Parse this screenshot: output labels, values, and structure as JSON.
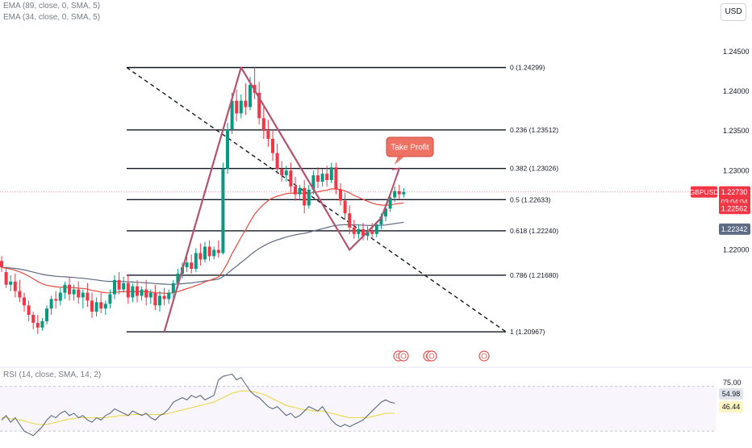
{
  "symbol": "GBPUSD",
  "currency_button": "USD",
  "countdown": "03:04:04",
  "indicators": {
    "ema89_label": "EMA (89, close, 0, SMA, 5)",
    "ema34_label": "EMA (34, close, 0, SMA, 5)",
    "rsi_label": "RSI (14, close, SMA, 14, 2)"
  },
  "colors": {
    "up": "#089981",
    "down": "#f23645",
    "ema34": "#e84a3f",
    "ema89": "#5d6b85",
    "pattern": "#b5536f",
    "take_profit_bg": "#ee7264",
    "rsi_line": "#5d6b85",
    "rsi_ma": "#e8d84a"
  },
  "annotation": {
    "take_profit": "Take Profit"
  },
  "chart_data": [
    {
      "type": "candlestick",
      "ylim": [
        1.2055,
        1.2515
      ],
      "y_ticks": [
        "1.24500",
        "1.24000",
        "1.23500",
        "1.23000",
        "1.22000"
      ],
      "y_tick_values": [
        1.245,
        1.24,
        1.235,
        1.23,
        1.22
      ],
      "fibonacci": [
        {
          "label": "0 (1.24299)",
          "value": 1.24299
        },
        {
          "label": "0.236 (1.23512)",
          "value": 1.23512
        },
        {
          "label": "0.382 (1.23026)",
          "value": 1.23026
        },
        {
          "label": "0.5 (1.22633)",
          "value": 1.22633
        },
        {
          "label": "0.618 (1.22240)",
          "value": 1.2224
        },
        {
          "label": "0.786 (1.21680)",
          "value": 1.2168
        },
        {
          "label": "1 (1.20967)",
          "value": 1.20967
        }
      ],
      "price_labels": [
        {
          "name": "GBPUSD",
          "value": 1.2273,
          "text": "1.22730"
        },
        {
          "name": "EMA 34",
          "value": 1.22562,
          "text": "1.22562"
        },
        {
          "name": "EMA 89",
          "value": 1.22342,
          "text": "1.22342"
        }
      ],
      "candles": [
        [
          1.2186,
          1.2192,
          1.2178,
          1.2172
        ],
        [
          1.2172,
          1.2179,
          1.2156,
          1.2152
        ],
        [
          1.2156,
          1.2168,
          1.216,
          1.2148
        ],
        [
          1.216,
          1.217,
          1.2148,
          1.214
        ],
        [
          1.2148,
          1.2162,
          1.214,
          1.2134
        ],
        [
          1.214,
          1.2146,
          1.213,
          1.2122
        ],
        [
          1.213,
          1.2136,
          1.2118,
          1.211
        ],
        [
          1.2118,
          1.2122,
          1.2108,
          1.21
        ],
        [
          1.2108,
          1.2118,
          1.2102,
          1.2094
        ],
        [
          1.2102,
          1.2114,
          1.211,
          1.2098
        ],
        [
          1.211,
          1.213,
          1.2126,
          1.2106
        ],
        [
          1.2126,
          1.2142,
          1.2138,
          1.2118
        ],
        [
          1.2138,
          1.2148,
          1.2136,
          1.2126
        ],
        [
          1.2136,
          1.2152,
          1.2146,
          1.213
        ],
        [
          1.2146,
          1.216,
          1.2156,
          1.2138
        ],
        [
          1.2156,
          1.2166,
          1.2144,
          1.2136
        ],
        [
          1.2144,
          1.2156,
          1.215,
          1.2136
        ],
        [
          1.215,
          1.216,
          1.214,
          1.2132
        ],
        [
          1.214,
          1.215,
          1.2146,
          1.2126
        ],
        [
          1.2146,
          1.2158,
          1.2136,
          1.2128
        ],
        [
          1.2136,
          1.2146,
          1.2122,
          1.2114
        ],
        [
          1.2122,
          1.214,
          1.2134,
          1.2116
        ],
        [
          1.2134,
          1.2146,
          1.2126,
          1.212
        ],
        [
          1.2126,
          1.2136,
          1.2132,
          1.2118
        ],
        [
          1.2132,
          1.215,
          1.2144,
          1.2126
        ],
        [
          1.2144,
          1.2168,
          1.2162,
          1.2138
        ],
        [
          1.2162,
          1.2172,
          1.215,
          1.2144
        ],
        [
          1.215,
          1.2166,
          1.2158,
          1.2146
        ],
        [
          1.2158,
          1.2168,
          1.214,
          1.2132
        ],
        [
          1.214,
          1.2158,
          1.2154,
          1.2134
        ],
        [
          1.2154,
          1.2162,
          1.2142,
          1.2134
        ],
        [
          1.2142,
          1.2154,
          1.215,
          1.2136
        ],
        [
          1.215,
          1.2162,
          1.214,
          1.213
        ],
        [
          1.214,
          1.215,
          1.2146,
          1.2132
        ],
        [
          1.2146,
          1.2156,
          1.213,
          1.2124
        ],
        [
          1.213,
          1.2148,
          1.2142,
          1.2122
        ],
        [
          1.2142,
          1.2152,
          1.2138,
          1.213
        ],
        [
          1.2138,
          1.215,
          1.2146,
          1.2132
        ],
        [
          1.2146,
          1.2162,
          1.2158,
          1.2138
        ],
        [
          1.2158,
          1.2176,
          1.217,
          1.2152
        ],
        [
          1.217,
          1.2184,
          1.2178,
          1.2164
        ],
        [
          1.2178,
          1.2192,
          1.2184,
          1.2172
        ],
        [
          1.2184,
          1.2194,
          1.2176,
          1.217
        ],
        [
          1.2176,
          1.2202,
          1.2196,
          1.2172
        ],
        [
          1.2196,
          1.2208,
          1.2188,
          1.218
        ],
        [
          1.2188,
          1.221,
          1.2204,
          1.2184
        ],
        [
          1.2204,
          1.2212,
          1.2192,
          1.2186
        ],
        [
          1.2192,
          1.2204,
          1.22,
          1.2188
        ],
        [
          1.22,
          1.2212,
          1.2196,
          1.219
        ],
        [
          1.2196,
          1.231,
          1.2302,
          1.2194
        ],
        [
          1.2302,
          1.236,
          1.2352,
          1.2296
        ],
        [
          1.2352,
          1.2398,
          1.2388,
          1.2346
        ],
        [
          1.2388,
          1.2402,
          1.2372,
          1.2362
        ],
        [
          1.2372,
          1.2396,
          1.2388,
          1.2366
        ],
        [
          1.2388,
          1.241,
          1.238,
          1.237
        ],
        [
          1.238,
          1.2418,
          1.2408,
          1.2376
        ],
        [
          1.2408,
          1.243,
          1.2398,
          1.239
        ],
        [
          1.2398,
          1.2412,
          1.2366,
          1.2358
        ],
        [
          1.2366,
          1.238,
          1.235,
          1.234
        ],
        [
          1.235,
          1.2364,
          1.234,
          1.233
        ],
        [
          1.234,
          1.2352,
          1.2322,
          1.2312
        ],
        [
          1.2322,
          1.2334,
          1.2302,
          1.2296
        ],
        [
          1.2302,
          1.2312,
          1.2294,
          1.2286
        ],
        [
          1.2294,
          1.2306,
          1.23,
          1.2286
        ],
        [
          1.23,
          1.231,
          1.228,
          1.2272
        ],
        [
          1.228,
          1.2292,
          1.227,
          1.2262
        ],
        [
          1.227,
          1.2282,
          1.2278,
          1.2262
        ],
        [
          1.2278,
          1.2288,
          1.2256,
          1.2246
        ],
        [
          1.2256,
          1.2282,
          1.2276,
          1.2252
        ],
        [
          1.2276,
          1.23,
          1.2294,
          1.227
        ],
        [
          1.2294,
          1.2304,
          1.2286,
          1.2278
        ],
        [
          1.2286,
          1.2302,
          1.2296,
          1.228
        ],
        [
          1.2296,
          1.2306,
          1.2288,
          1.228
        ],
        [
          1.2288,
          1.231,
          1.2304,
          1.2284
        ],
        [
          1.2304,
          1.231,
          1.2276,
          1.227
        ],
        [
          1.2276,
          1.2284,
          1.2262,
          1.2256
        ],
        [
          1.2262,
          1.2272,
          1.2246,
          1.2238
        ],
        [
          1.2246,
          1.2256,
          1.2228,
          1.222
        ],
        [
          1.2228,
          1.2238,
          1.222,
          1.2214
        ],
        [
          1.222,
          1.2232,
          1.2226,
          1.2214
        ],
        [
          1.2226,
          1.2234,
          1.2218,
          1.2212
        ],
        [
          1.2218,
          1.223,
          1.2224,
          1.2212
        ],
        [
          1.2224,
          1.2234,
          1.222,
          1.2214
        ],
        [
          1.222,
          1.2236,
          1.2232,
          1.2216
        ],
        [
          1.2232,
          1.2246,
          1.2242,
          1.2226
        ],
        [
          1.2242,
          1.2258,
          1.2252,
          1.2236
        ],
        [
          1.2252,
          1.2272,
          1.2266,
          1.2248
        ],
        [
          1.2266,
          1.228,
          1.2274,
          1.226
        ],
        [
          1.2274,
          1.2282,
          1.227,
          1.2264
        ],
        [
          1.227,
          1.2278,
          1.2273,
          1.2266
        ]
      ]
    },
    {
      "type": "line",
      "title": "RSI (14, close, SMA, 14, 2)",
      "ylim": [
        20,
        85
      ],
      "y_ticks": [
        "75.00"
      ],
      "value_labels": [
        "54.98",
        "46.44"
      ],
      "series": [
        {
          "name": "RSI",
          "values": [
            40,
            44,
            38,
            42,
            36,
            30,
            28,
            26,
            30,
            34,
            40,
            44,
            42,
            46,
            48,
            44,
            46,
            42,
            44,
            40,
            38,
            42,
            40,
            44,
            46,
            50,
            48,
            46,
            44,
            48,
            46,
            44,
            46,
            42,
            40,
            44,
            46,
            50,
            56,
            58,
            60,
            58,
            62,
            60,
            62,
            58,
            60,
            62,
            76,
            79,
            80,
            81,
            76,
            78,
            72,
            66,
            62,
            60,
            56,
            52,
            50,
            52,
            48,
            44,
            46,
            42,
            44,
            48,
            52,
            50,
            48,
            52,
            46,
            40,
            36,
            34,
            36,
            34,
            36,
            38,
            40,
            44,
            48,
            52,
            56,
            58,
            56,
            55
          ]
        },
        {
          "name": "RSI MA",
          "values": [
            42,
            42,
            41,
            41,
            40,
            39,
            38,
            37,
            36,
            36,
            36,
            37,
            38,
            39,
            40,
            41,
            41,
            42,
            42,
            42,
            42,
            42,
            42,
            42,
            43,
            43,
            44,
            44,
            44,
            45,
            45,
            45,
            45,
            45,
            45,
            45,
            45,
            46,
            47,
            48,
            49,
            50,
            51,
            52,
            53,
            54,
            55,
            56,
            58,
            60,
            62,
            64,
            65,
            66,
            66,
            66,
            65,
            64,
            63,
            61,
            59,
            57,
            55,
            53,
            52,
            51,
            50,
            49,
            49,
            48,
            48,
            48,
            47,
            46,
            45,
            44,
            43,
            42,
            42,
            42,
            42,
            42,
            43,
            44,
            45,
            46,
            46,
            46
          ]
        }
      ]
    }
  ]
}
